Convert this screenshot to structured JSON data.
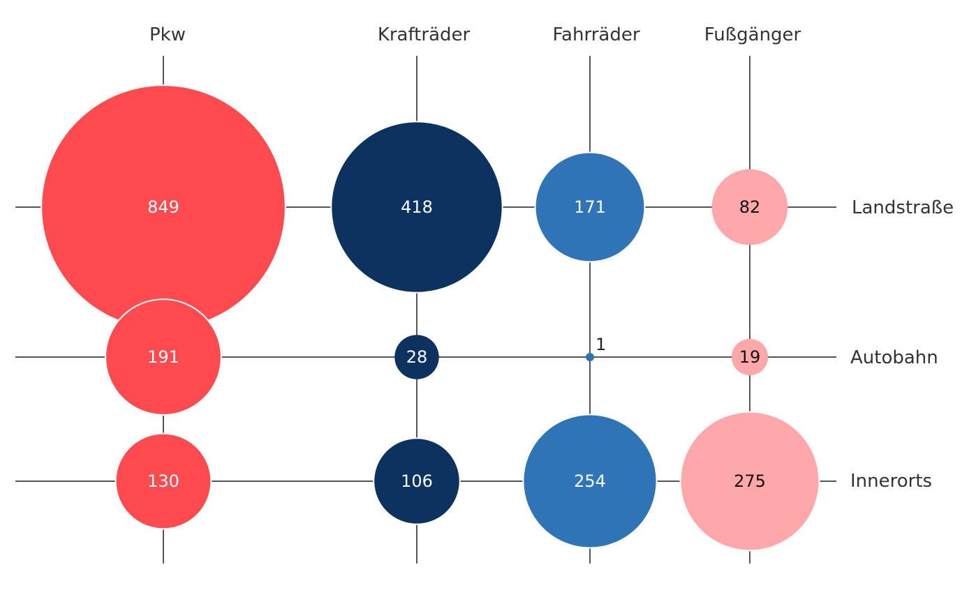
{
  "chart_data": {
    "type": "bubble-matrix",
    "columns": [
      "Pkw",
      "Krafträder",
      "Fahrräder",
      "Fußgänger"
    ],
    "rows": [
      "Landstraße",
      "Autobahn",
      "Innerorts"
    ],
    "series": [
      {
        "name": "Pkw",
        "color": "#ff4a4f",
        "label_color": "#ffffff",
        "values": [
          849,
          191,
          130
        ]
      },
      {
        "name": "Krafträder",
        "color": "#0c3360",
        "label_color": "#ffffff",
        "values": [
          418,
          28,
          106
        ]
      },
      {
        "name": "Fahrräder",
        "color": "#2e74b7",
        "label_color": "#ffffff",
        "values": [
          171,
          1,
          254
        ]
      },
      {
        "name": "Fußgänger",
        "color": "#ffa8aa",
        "label_color": "#111111",
        "values": [
          82,
          19,
          275
        ]
      }
    ],
    "legend": "none",
    "grid": true
  }
}
